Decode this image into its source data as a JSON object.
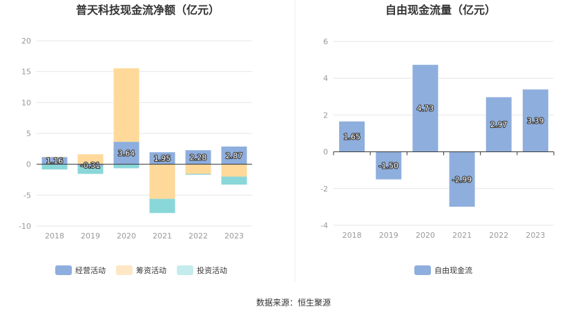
{
  "source": "数据来源：恒生聚源",
  "colors": {
    "operating": "#8eaedd",
    "financing": "#fed99a",
    "investing": "#8ad7d9",
    "fcf": "#8eaedd"
  },
  "chart_data": [
    {
      "type": "bar",
      "stacked": true,
      "title": "普天科技现金流净额（亿元）",
      "categories": [
        "2018",
        "2019",
        "2020",
        "2021",
        "2022",
        "2023"
      ],
      "ylim": [
        -10,
        20
      ],
      "yticks": [
        -10,
        -5,
        0,
        5,
        10,
        15,
        20
      ],
      "grid": true,
      "legend": "bottom",
      "series": [
        {
          "name": "经营活动",
          "values": [
            1.16,
            -0.31,
            3.64,
            1.95,
            2.28,
            2.87
          ]
        },
        {
          "name": "筹资活动",
          "values": [
            0.05,
            1.62,
            11.9,
            -5.6,
            -1.55,
            -2.0
          ]
        },
        {
          "name": "投资活动",
          "values": [
            -0.85,
            -1.25,
            -0.65,
            -2.3,
            -0.15,
            -1.3
          ]
        }
      ],
      "data_labels": [
        "1.16",
        "-0.31",
        "3.64",
        "1.95",
        "2.28",
        "2.87"
      ]
    },
    {
      "type": "bar",
      "title": "自由现金流量（亿元）",
      "categories": [
        "2018",
        "2019",
        "2020",
        "2021",
        "2022",
        "2023"
      ],
      "ylim": [
        -4,
        6
      ],
      "yticks": [
        -4,
        -2,
        0,
        2,
        4,
        6
      ],
      "grid": true,
      "legend": "bottom",
      "series": [
        {
          "name": "自由现金流",
          "values": [
            1.65,
            -1.5,
            4.73,
            -2.99,
            2.97,
            3.39
          ]
        }
      ],
      "data_labels": [
        "1.65",
        "-1.50",
        "4.73",
        "-2.99",
        "2.97",
        "3.39"
      ]
    }
  ]
}
